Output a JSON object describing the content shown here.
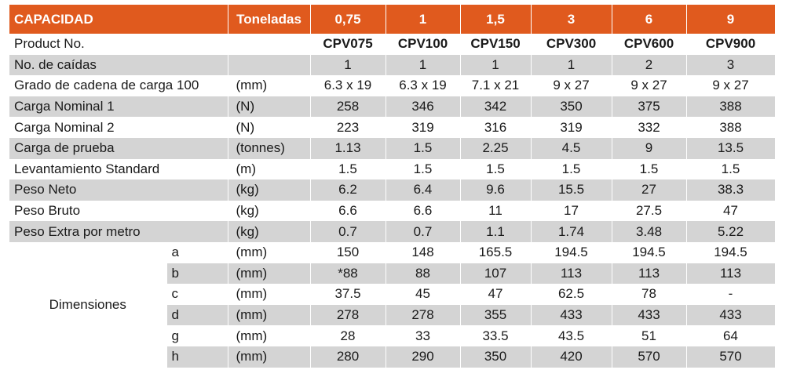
{
  "header": {
    "capacity_label": "CAPACIDAD",
    "unit_label": "Toneladas",
    "capacities": [
      "0,75",
      "1",
      "1,5",
      "3",
      "6",
      "9"
    ]
  },
  "rows": [
    {
      "label": "Product No.",
      "unit": "",
      "values": [
        "CPV075",
        "CPV100",
        "CPV150",
        "CPV300",
        "CPV600",
        "CPV900"
      ]
    },
    {
      "label": "No. de caídas",
      "unit": "",
      "values": [
        "1",
        "1",
        "1",
        "1",
        "2",
        "3"
      ]
    },
    {
      "label": "Grado de cadena de carga 100",
      "unit": "(mm)",
      "values": [
        "6.3 x 19",
        "6.3 x 19",
        "7.1 x 21",
        "9 x 27",
        "9 x 27",
        "9 x 27"
      ]
    },
    {
      "label": "Carga Nominal 1",
      "unit": "(N)",
      "values": [
        "258",
        "346",
        "342",
        "350",
        "375",
        "388"
      ]
    },
    {
      "label": "Carga Nominal 2",
      "unit": "(N)",
      "values": [
        "223",
        "319",
        "316",
        "319",
        "332",
        "388"
      ]
    },
    {
      "label": "Carga de prueba",
      "unit": "(tonnes)",
      "values": [
        "1.13",
        "1.5",
        "2.25",
        "4.5",
        "9",
        "13.5"
      ]
    },
    {
      "label": "Levantamiento Standard",
      "unit": "(m)",
      "values": [
        "1.5",
        "1.5",
        "1.5",
        "1.5",
        "1.5",
        "1.5"
      ]
    },
    {
      "label": "Peso Neto",
      "unit": "(kg)",
      "values": [
        "6.2",
        "6.4",
        "9.6",
        "15.5",
        "27",
        "38.3"
      ]
    },
    {
      "label": "Peso Bruto",
      "unit": "(kg)",
      "values": [
        "6.6",
        "6.6",
        "11",
        "17",
        "27.5",
        "47"
      ]
    },
    {
      "label": "Peso Extra por metro",
      "unit": "(kg)",
      "values": [
        "0.7",
        "0.7",
        "1.1",
        "1.74",
        "3.48",
        "5.22"
      ]
    }
  ],
  "dimensions": {
    "label": "Dimensiones",
    "rows": [
      {
        "sub": "a",
        "unit": "(mm)",
        "values": [
          "150",
          "148",
          "165.5",
          "194.5",
          "194.5",
          "194.5"
        ]
      },
      {
        "sub": "b",
        "unit": "(mm)",
        "values": [
          "*88",
          "88",
          "107",
          "113",
          "113",
          "113"
        ]
      },
      {
        "sub": "c",
        "unit": "(mm)",
        "values": [
          "37.5",
          "45",
          "47",
          "62.5",
          "78",
          "-"
        ]
      },
      {
        "sub": "d",
        "unit": "(mm)",
        "values": [
          "278",
          "278",
          "355",
          "433",
          "433",
          "433"
        ]
      },
      {
        "sub": "g",
        "unit": "(mm)",
        "values": [
          "28",
          "33",
          "33.5",
          "43.5",
          "51",
          "64"
        ]
      },
      {
        "sub": "h",
        "unit": "(mm)",
        "values": [
          "280",
          "290",
          "350",
          "420",
          "570",
          "570"
        ]
      }
    ]
  },
  "colors": {
    "header_bg": "#e05a1e",
    "header_text": "#ffffff",
    "stripe": "#d4d4d4"
  }
}
